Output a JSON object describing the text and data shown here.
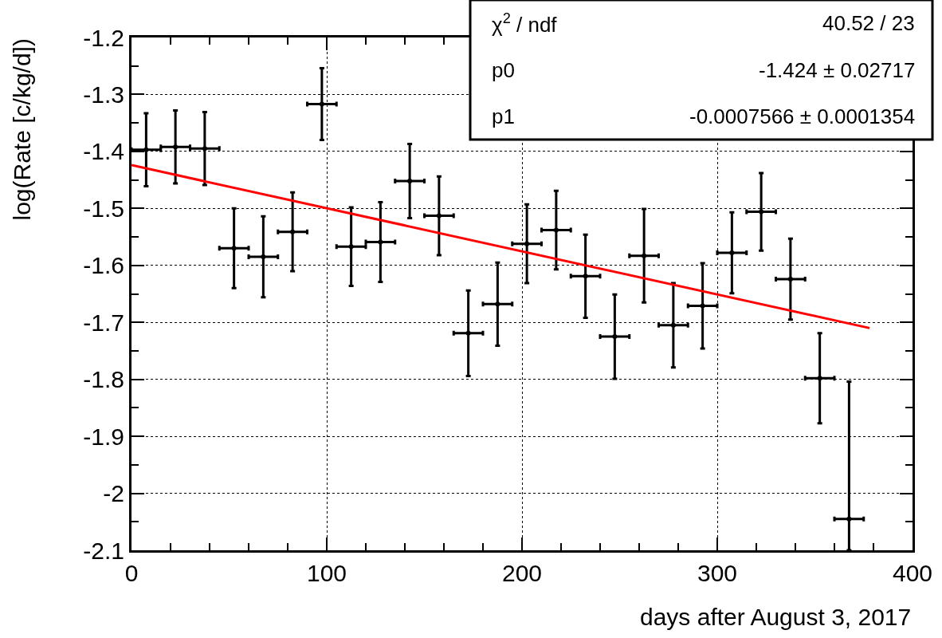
{
  "chart_data": {
    "type": "scatter",
    "xlabel": "days after August 3, 2017",
    "ylabel": "log(Rate [c/kg/d])",
    "x": [
      7.5,
      22.5,
      37.5,
      52.5,
      67.5,
      82.5,
      97.5,
      112.5,
      127.5,
      142.5,
      157.5,
      172.5,
      187.5,
      202.5,
      217.5,
      232.5,
      247.5,
      262.5,
      277.5,
      292.5,
      307.5,
      322.5,
      337.5,
      352.5,
      367.5
    ],
    "series": [
      {
        "color": "#000000",
        "marker": "none",
        "values": [
          -1.397,
          -1.392,
          -1.395,
          -1.57,
          -1.585,
          -1.541,
          -1.317,
          -1.567,
          -1.559,
          -1.452,
          -1.513,
          -1.719,
          -1.668,
          -1.562,
          -1.538,
          -1.619,
          -1.725,
          -1.583,
          -1.705,
          -1.671,
          -1.578,
          -1.506,
          -1.624,
          -1.798,
          -2.045
        ],
        "errors": [
          0.064,
          0.064,
          0.064,
          0.07,
          0.071,
          0.069,
          0.063,
          0.069,
          0.07,
          0.065,
          0.069,
          0.075,
          0.073,
          0.069,
          0.069,
          0.073,
          0.074,
          0.082,
          0.074,
          0.075,
          0.071,
          0.068,
          0.071,
          0.079,
          [
            -2.1,
            -1.804
          ]
        ],
        "xerrors": [
          7.5,
          7.5,
          7.5,
          7.5,
          7.5,
          7.5,
          7.5,
          7.5,
          7.5,
          7.5,
          7.5,
          7.5,
          7.5,
          7.5,
          7.5,
          7.5,
          7.5,
          7.5,
          7.5,
          7.5,
          7.5,
          7.5,
          7.5,
          7.5,
          7.5
        ]
      },
      {
        "type": "line",
        "color": "#ff0000",
        "x": [
          0,
          378
        ],
        "values": [
          -1.424,
          -1.71
        ],
        "line_style": "solid"
      }
    ],
    "xlim": [
      0,
      400
    ],
    "xticks": [
      0,
      100,
      200,
      300,
      400
    ],
    "ylim": [
      -2.1,
      -1.2
    ],
    "yticks": [
      -2.1,
      -2,
      -1.9,
      -1.8,
      -1.7,
      -1.6,
      -1.5,
      -1.4,
      -1.3,
      -1.2
    ],
    "grid": true,
    "annotations": [
      "χ$^{2}$ / ndf",
      "40.52 / 23",
      "p0",
      "-1.424 ± 0.02717",
      "p1",
      "-0.0007566 ± 0.0001354"
    ]
  }
}
